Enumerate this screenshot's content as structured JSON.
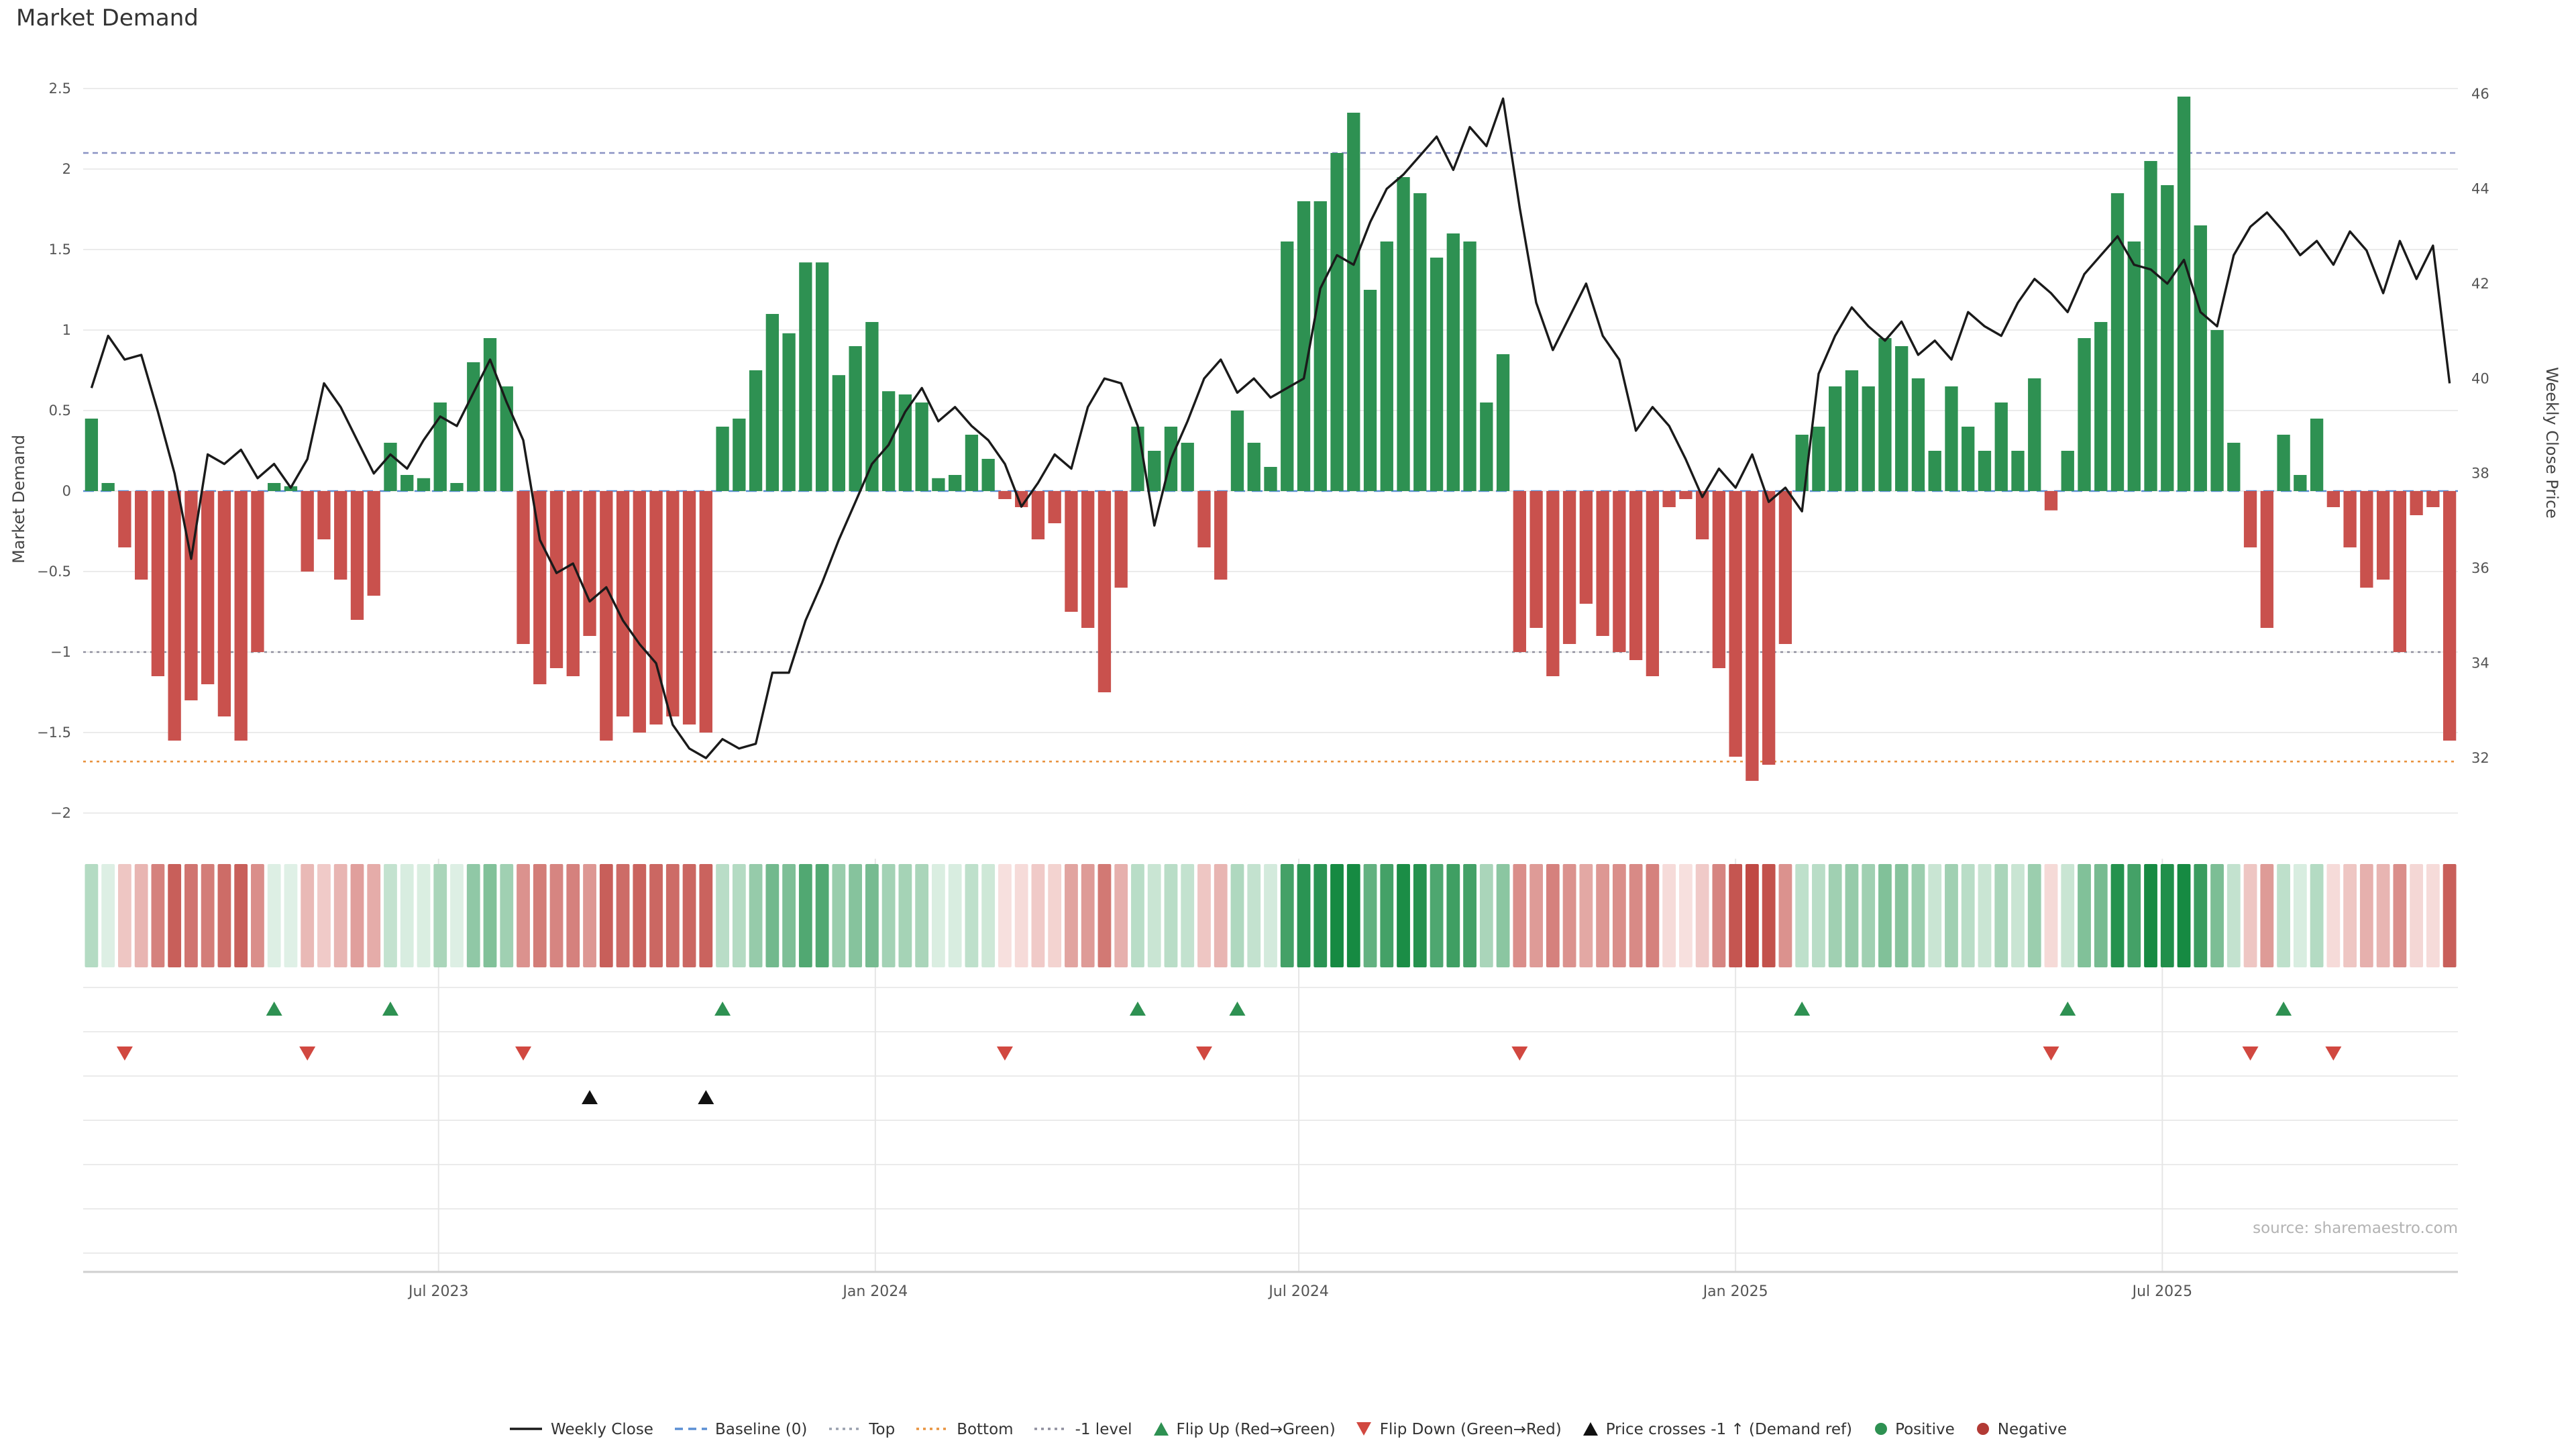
{
  "title": "Market Demand",
  "source": "source: sharemaestro.com",
  "axes": {
    "left_label": "Market Demand",
    "right_label": "Weekly Close Price",
    "left_ticks": [
      2.5,
      2,
      1.5,
      1,
      0.5,
      0,
      -0.5,
      -1,
      -1.5,
      -2
    ],
    "right_ticks": [
      46,
      44,
      42,
      40,
      38,
      36,
      34,
      32
    ],
    "x_ticks": [
      {
        "label": "Jul 2023",
        "pos": 21.4
      },
      {
        "label": "Jan 2024",
        "pos": 47.7
      },
      {
        "label": "Jul 2024",
        "pos": 73.2
      },
      {
        "label": "Jan 2025",
        "pos": 99.5
      },
      {
        "label": "Jul 2025",
        "pos": 125.2
      }
    ]
  },
  "chart_data": {
    "type": "combo-bar-line-heatmap",
    "title": "Market Demand",
    "x_unit": "weeks",
    "demand_ylim": [
      -2,
      2.5
    ],
    "price_ylim": [
      32,
      46
    ],
    "demand": [
      0.45,
      0.05,
      -0.35,
      -0.55,
      -1.15,
      -1.55,
      -1.3,
      -1.2,
      -1.4,
      -1.55,
      -1.0,
      0.05,
      0.03,
      -0.5,
      -0.3,
      -0.55,
      -0.8,
      -0.65,
      0.3,
      0.1,
      0.08,
      0.55,
      0.05,
      0.8,
      0.95,
      0.65,
      -0.95,
      -1.2,
      -1.1,
      -1.15,
      -0.9,
      -1.55,
      -1.4,
      -1.5,
      -1.45,
      -1.4,
      -1.45,
      -1.5,
      0.4,
      0.45,
      0.75,
      1.1,
      0.98,
      1.42,
      1.42,
      0.72,
      0.9,
      1.05,
      0.62,
      0.6,
      0.55,
      0.08,
      0.1,
      0.35,
      0.2,
      -0.05,
      -0.1,
      -0.3,
      -0.2,
      -0.75,
      -0.85,
      -1.25,
      -0.6,
      0.4,
      0.25,
      0.4,
      0.3,
      -0.35,
      -0.55,
      0.5,
      0.3,
      0.15,
      1.55,
      1.8,
      1.8,
      2.1,
      2.35,
      1.25,
      1.55,
      1.95,
      1.85,
      1.45,
      1.6,
      1.55,
      0.55,
      0.85,
      -1.0,
      -0.85,
      -1.15,
      -0.95,
      -0.7,
      -0.9,
      -1.0,
      -1.05,
      -1.15,
      -0.1,
      -0.05,
      -0.3,
      -1.1,
      -1.65,
      -1.8,
      -1.7,
      -0.95,
      0.35,
      0.4,
      0.65,
      0.75,
      0.65,
      0.95,
      0.9,
      0.7,
      0.25,
      0.65,
      0.4,
      0.25,
      0.55,
      0.25,
      0.7,
      -0.12,
      0.25,
      0.95,
      1.05,
      1.85,
      1.55,
      2.05,
      1.9,
      2.45,
      1.65,
      1.0,
      0.3,
      -0.35,
      -0.85,
      0.35,
      0.1,
      0.45,
      -0.1,
      -0.35,
      -0.6,
      -0.55,
      -1.0,
      -0.15,
      -0.1,
      -1.55
    ],
    "price": [
      39.8,
      40.9,
      40.4,
      40.5,
      39.3,
      38.0,
      36.2,
      38.4,
      38.2,
      38.5,
      37.9,
      38.2,
      37.7,
      38.3,
      39.9,
      39.4,
      38.7,
      38.0,
      38.4,
      38.1,
      38.7,
      39.2,
      39.0,
      39.7,
      40.4,
      39.5,
      38.7,
      36.6,
      35.9,
      36.1,
      35.3,
      35.6,
      34.9,
      34.4,
      34.0,
      32.7,
      32.2,
      32.0,
      32.4,
      32.2,
      32.3,
      33.8,
      33.8,
      34.9,
      35.7,
      36.6,
      37.4,
      38.2,
      38.6,
      39.3,
      39.8,
      39.1,
      39.4,
      39.0,
      38.7,
      38.2,
      37.3,
      37.8,
      38.4,
      38.1,
      39.4,
      40.0,
      39.9,
      39.0,
      36.9,
      38.3,
      39.1,
      40.0,
      40.4,
      39.7,
      40.0,
      39.6,
      39.8,
      40.0,
      41.9,
      42.6,
      42.4,
      43.3,
      44.0,
      44.3,
      44.7,
      45.1,
      44.4,
      45.3,
      44.9,
      45.9,
      43.6,
      41.6,
      40.6,
      41.3,
      42.0,
      40.9,
      40.4,
      38.9,
      39.4,
      39.0,
      38.3,
      37.5,
      38.1,
      37.7,
      38.4,
      37.4,
      37.7,
      37.2,
      40.1,
      40.9,
      41.5,
      41.1,
      40.8,
      41.2,
      40.5,
      40.8,
      40.4,
      41.4,
      41.1,
      40.9,
      41.6,
      42.1,
      41.8,
      41.4,
      42.2,
      42.6,
      43.0,
      42.4,
      42.3,
      42.0,
      42.5,
      41.4,
      41.1,
      42.6,
      43.2,
      43.5,
      43.1,
      42.6,
      42.9,
      42.4,
      43.1,
      42.7,
      41.8,
      42.9,
      42.1,
      42.8,
      39.9
    ],
    "reference_lines": {
      "baseline": 0,
      "top": 2.1,
      "bottom": -1.68,
      "minus1": -1
    },
    "flip_up_weeks": [
      12,
      19,
      39,
      64,
      70,
      104,
      120,
      133
    ],
    "flip_down_weeks": [
      3,
      14,
      27,
      56,
      68,
      87,
      119,
      131,
      136
    ],
    "price_cross_weeks": [
      31,
      38
    ]
  },
  "colors": {
    "positive": "#2e9152",
    "negative": "#c9514d",
    "price_line": "#1a1a1a",
    "baseline": "#5b8fd4",
    "top": "#8a93c4",
    "bottom": "#e8933f",
    "minus1": "#8f8f9e",
    "flip_up": "#2e9152",
    "flip_down": "#d14840",
    "price_cross": "#111111",
    "grid": "#ebebeb",
    "axis": "#cfcfcf",
    "tick_text": "#555555",
    "heat_green_lo": "#e2f2e8",
    "heat_green_hi": "#168a42",
    "heat_red_lo": "#f9e4e2",
    "heat_red_hi": "#ba3832"
  },
  "legend": {
    "items": [
      {
        "label": "Weekly Close",
        "glyph": "line-solid",
        "color": "#1a1a1a"
      },
      {
        "label": "Baseline (0)",
        "glyph": "line-dashed",
        "color": "#5b8fd4"
      },
      {
        "label": "Top",
        "glyph": "line-dotted",
        "color": "#9aa0ae"
      },
      {
        "label": "Bottom",
        "glyph": "line-dotted",
        "color": "#e8933f"
      },
      {
        "label": "-1 level",
        "glyph": "line-dotted",
        "color": "#8f8f9e"
      },
      {
        "label": "Flip Up (Red→Green)",
        "glyph": "triangle-up",
        "color": "#2e9152"
      },
      {
        "label": "Flip Down (Green→Red)",
        "glyph": "triangle-down",
        "color": "#d14840"
      },
      {
        "label": "Price crosses -1 ↑ (Demand ref)",
        "glyph": "triangle-up",
        "color": "#111111"
      },
      {
        "label": "Positive",
        "glyph": "dot",
        "color": "#2e9152"
      },
      {
        "label": "Negative",
        "glyph": "dot",
        "color": "#b23a35"
      }
    ]
  }
}
